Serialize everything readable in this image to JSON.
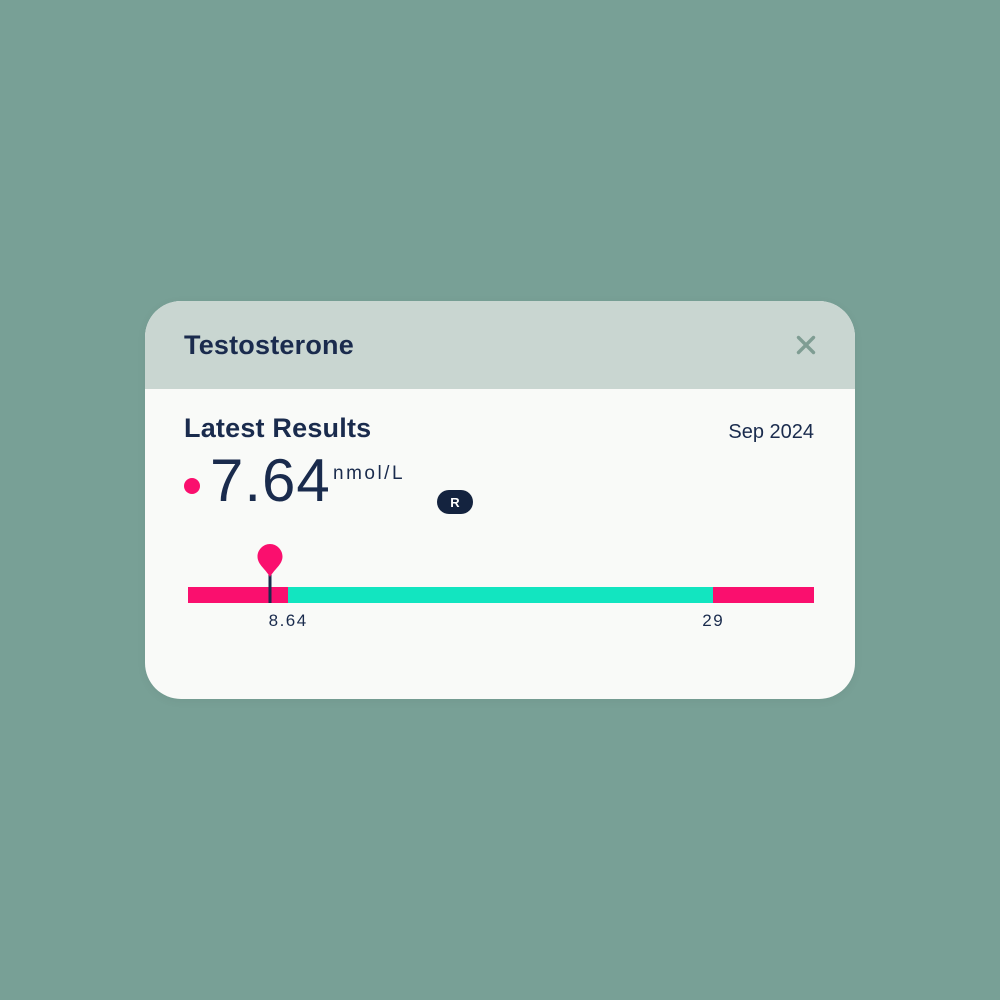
{
  "colors": {
    "page_background": "#78a096",
    "card_background": "#f9faf8",
    "header_background": "#c9d6d1",
    "text_primary": "#1a2b4d",
    "accent_pink": "#fa0f6e",
    "range_teal": "#12e5c0",
    "close_icon": "#7f9d93",
    "badge_background": "#14233f",
    "badge_text": "#ffffff"
  },
  "modal": {
    "title": "Testosterone"
  },
  "results": {
    "heading": "Latest Results",
    "date": "Sep 2024",
    "value": "7.64",
    "unit": "nmol/L",
    "badge_label": "R"
  },
  "range_bar": {
    "marker_value": 7.64,
    "marker_position_pct": 13.1,
    "low_bound": {
      "label": "8.64",
      "position_pct": 16.0
    },
    "high_bound": {
      "label": "29",
      "position_pct": 83.9
    },
    "segments": [
      {
        "name": "below-range",
        "color": "#fa0f6e",
        "width_pct": 16.0
      },
      {
        "name": "in-range",
        "color": "#12e5c0",
        "width_pct": 67.9
      },
      {
        "name": "above-range",
        "color": "#fa0f6e",
        "width_pct": 16.1
      }
    ]
  }
}
